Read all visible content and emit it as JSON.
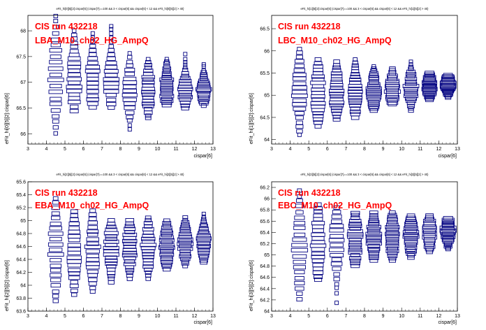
{
  "colors": {
    "frame": "#000000",
    "box": "#000080",
    "annotation": "#ff0000",
    "background": "#ffffff"
  },
  "chart_data": [
    {
      "type": "candle",
      "title": "eFit_hi[0][5][2]:cispar[6] {cispar[7]==100 && 3 < cispar[6] && cispar[6] < 12 && eFit_hi[0][5][2] > 40}",
      "annotation_line1": "CIS run 432218",
      "annotation_line2": "LBA_M10_ch02_HG_AmpQ",
      "xlabel": "cispar[6]",
      "ylabel": "eFit_hi[0][5][2]:cispar[6]",
      "xlim": [
        3,
        13
      ],
      "ylim": [
        65.8,
        68.3
      ],
      "xticks": [
        3,
        4,
        5,
        6,
        7,
        8,
        9,
        10,
        11,
        12,
        13
      ],
      "yticks": [
        66,
        66.5,
        67,
        67.5,
        68
      ],
      "ytick_labels": [
        "66",
        "66.5",
        "67",
        "67.5",
        "68"
      ],
      "x": [
        4.5,
        5.5,
        6.5,
        7.5,
        8.5,
        9.5,
        10.5,
        11.5,
        12.5
      ],
      "center": [
        67.1,
        67.05,
        67.0,
        67.0,
        66.85,
        66.85,
        66.85,
        66.85,
        66.85
      ],
      "spread": [
        0.55,
        0.45,
        0.4,
        0.35,
        0.32,
        0.3,
        0.28,
        0.22,
        0.18
      ],
      "low": [
        66.0,
        66.45,
        66.5,
        66.5,
        66.0,
        66.3,
        66.55,
        66.5,
        66.55
      ],
      "high": [
        68.3,
        68.0,
        68.1,
        68.1,
        67.65,
        67.45,
        67.45,
        67.55,
        67.35
      ],
      "n_levels": 20
    },
    {
      "type": "candle",
      "title": "eFit_hi[1][5][2]:cispar[6] {cispar[7]==100 && 3 < cispar[6] && cispar[6] < 12 && eFit_hi[1][5][2] > 40}",
      "annotation_line1": "CIS run 432218",
      "annotation_line2": "LBC_M10_ch02_HG_AmpQ",
      "xlabel": "cispar[6]",
      "ylabel": "eFit_hi[1][5][2]:cispar[6]",
      "xlim": [
        3,
        13
      ],
      "ylim": [
        63.9,
        66.8
      ],
      "xticks": [
        3,
        4,
        5,
        6,
        7,
        8,
        9,
        10,
        11,
        12,
        13
      ],
      "yticks": [
        64,
        64.5,
        65,
        65.5,
        66,
        66.5
      ],
      "ytick_labels": [
        "64",
        "64.5",
        "65",
        "65.5",
        "66",
        "66.5"
      ],
      "x": [
        4.5,
        5.5,
        6.5,
        7.5,
        8.5,
        9.5,
        10.5,
        11.5,
        12.5
      ],
      "center": [
        65.1,
        65.05,
        65.05,
        65.05,
        65.05,
        65.1,
        65.15,
        65.2,
        65.25
      ],
      "spread": [
        0.5,
        0.45,
        0.4,
        0.35,
        0.3,
        0.28,
        0.26,
        0.22,
        0.18
      ],
      "low": [
        64.1,
        64.3,
        64.45,
        64.5,
        64.65,
        64.8,
        64.65,
        64.9,
        64.95
      ],
      "high": [
        66.05,
        65.8,
        65.75,
        65.8,
        65.65,
        65.6,
        65.75,
        65.5,
        65.45
      ],
      "n_levels": 20
    },
    {
      "type": "candle",
      "title": "eFit_hi[2][5][2]:cispar[6] {cispar[7]==100 && 3 < cispar[6] && cispar[6] < 12 && eFit_hi[2][5][2] > 40}",
      "annotation_line1": "CIS run 432218",
      "annotation_line2": "EBA_M10_ch02_HG_AmpQ",
      "xlabel": "cispar[6]",
      "ylabel": "eFit_hi[2][5][2]:cispar[6]",
      "xlim": [
        3,
        13
      ],
      "ylim": [
        63.6,
        65.6
      ],
      "xticks": [
        3,
        4,
        5,
        6,
        7,
        8,
        9,
        10,
        11,
        12,
        13
      ],
      "yticks": [
        63.6,
        63.8,
        64,
        64.2,
        64.4,
        64.6,
        64.8,
        65,
        65.2,
        65.4,
        65.6
      ],
      "ytick_labels": [
        "63.6",
        "63.8",
        "64",
        "64.2",
        "64.4",
        "64.6",
        "64.8",
        "65",
        "65.2",
        "65.4",
        "65.6"
      ],
      "x": [
        4.5,
        5.5,
        6.5,
        7.5,
        8.5,
        9.5,
        10.5,
        11.5,
        12.5
      ],
      "center": [
        64.55,
        64.55,
        64.55,
        64.6,
        64.6,
        64.6,
        64.6,
        64.65,
        64.65
      ],
      "spread": [
        0.42,
        0.38,
        0.34,
        0.3,
        0.28,
        0.26,
        0.24,
        0.2,
        0.18
      ],
      "low": [
        63.75,
        63.85,
        63.9,
        64.05,
        64.1,
        64.1,
        64.25,
        64.3,
        64.35
      ],
      "high": [
        65.35,
        65.15,
        65.15,
        65.0,
        65.0,
        65.05,
        65.0,
        65.05,
        65.1
      ],
      "n_levels": 20
    },
    {
      "type": "candle",
      "title": "eFit_hi[3][5][2]:cispar[6] {cispar[7]==100 && 3 < cispar[6] && cispar[6] < 12 && eFit_hi[3][5][2] > 40}",
      "annotation_line1": "CIS run 432218",
      "annotation_line2": "EBC_M10_ch02_HG_AmpQ",
      "xlabel": "cispar[6]",
      "ylabel": "eFit_hi[3][5][2]:cispar[6]",
      "xlim": [
        3,
        13
      ],
      "ylim": [
        64.0,
        66.3
      ],
      "xticks": [
        3,
        4,
        5,
        6,
        7,
        8,
        9,
        10,
        11,
        12,
        13
      ],
      "yticks": [
        64,
        64.2,
        64.4,
        64.6,
        64.8,
        65,
        65.2,
        65.4,
        65.6,
        65.8,
        66,
        66.2
      ],
      "ytick_labels": [
        "64",
        "64.2",
        "64.4",
        "64.6",
        "64.8",
        "65",
        "65.2",
        "65.4",
        "65.6",
        "65.8",
        "66",
        "66.2"
      ],
      "x": [
        4.5,
        5.5,
        6.5,
        7.5,
        8.5,
        9.5,
        10.5,
        11.5,
        12.5
      ],
      "center": [
        65.1,
        65.2,
        65.25,
        65.3,
        65.3,
        65.3,
        65.35,
        65.4,
        65.45
      ],
      "spread": [
        0.5,
        0.42,
        0.38,
        0.34,
        0.3,
        0.28,
        0.26,
        0.22,
        0.2
      ],
      "low": [
        64.2,
        64.55,
        64.15,
        64.8,
        64.9,
        64.9,
        64.95,
        65.05,
        65.1
      ],
      "high": [
        66.15,
        65.9,
        65.85,
        65.75,
        65.75,
        65.75,
        65.7,
        65.7,
        65.65
      ],
      "n_levels": 20
    }
  ]
}
